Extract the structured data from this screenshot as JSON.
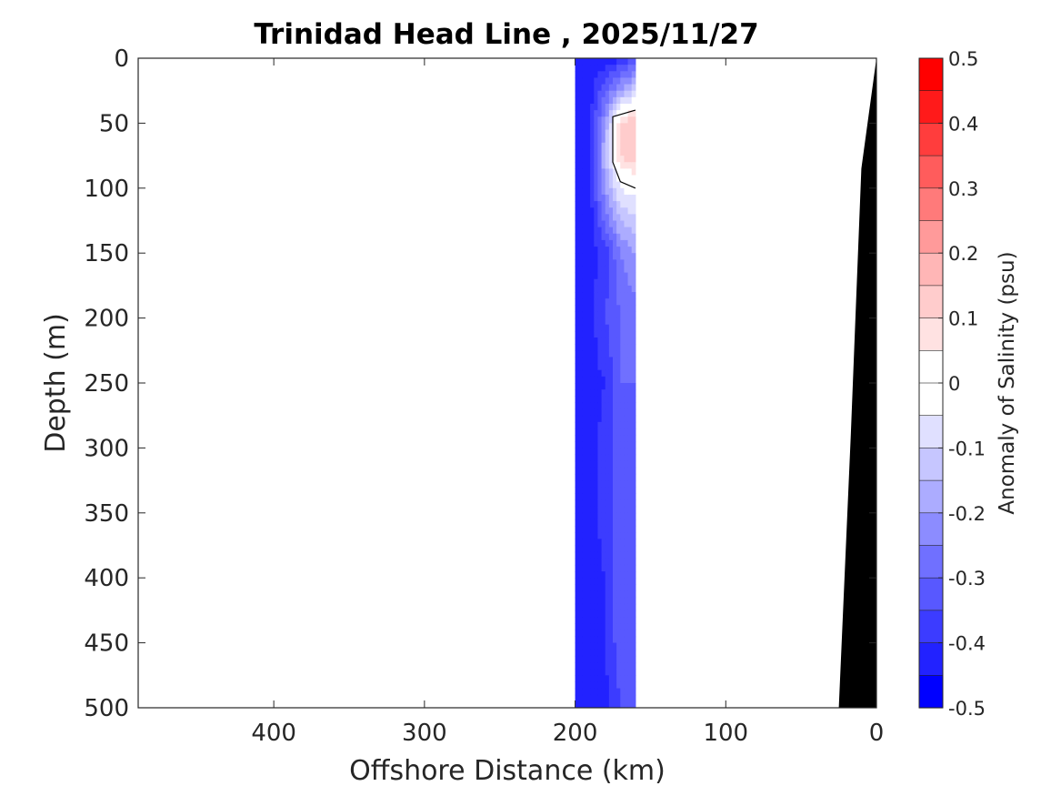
{
  "chart_data": {
    "type": "heatmap",
    "title": "Trinidad Head Line , 2025/11/27",
    "xlabel": "Offshore Distance (km)",
    "ylabel": "Depth (m)",
    "colorbar_label": "Anomaly of Salinity (psu)",
    "xlim": [
      490,
      0
    ],
    "ylim": [
      0,
      500
    ],
    "x_reversed": true,
    "y_reversed": true,
    "x_ticks": [
      400,
      300,
      200,
      100,
      0
    ],
    "y_ticks": [
      0,
      50,
      100,
      150,
      200,
      250,
      300,
      350,
      400,
      450,
      500
    ],
    "colorbar_range": [
      -0.5,
      0.5
    ],
    "colorbar_ticks": [
      0.5,
      0.4,
      0.3,
      0.2,
      0.1,
      0,
      -0.1,
      -0.2,
      -0.3,
      -0.4,
      -0.5
    ],
    "colorbar_tick_labels": [
      "0.5",
      "0.4",
      "0.3",
      "0.2",
      "0.1",
      "0",
      "-0.1",
      "-0.2",
      "-0.3",
      "-0.4",
      "-0.5"
    ],
    "colorbar_colors": [
      "#ff0000",
      "#ff1a1a",
      "#ff3d3d",
      "#ff5c5c",
      "#ff7a7a",
      "#ff9a9a",
      "#ffb6b6",
      "#ffcccc",
      "#ffe2e2",
      "#ffffff",
      "#ffffff",
      "#e0e0ff",
      "#c6c6ff",
      "#acacff",
      "#8c8cff",
      "#7070ff",
      "#5858ff",
      "#3c3cff",
      "#2222ff",
      "#0000ff"
    ],
    "data_band_x": [
      200,
      160
    ],
    "profiles": {
      "x": [
        200,
        190,
        180,
        170,
        160
      ],
      "depth": [
        0,
        25,
        50,
        75,
        100,
        150,
        200,
        250,
        300,
        350,
        400,
        450,
        500
      ],
      "salinity_anomaly": [
        [
          -0.45,
          -0.45,
          -0.45,
          -0.45,
          -0.45,
          -0.45,
          -0.45,
          -0.45,
          -0.45,
          -0.45,
          -0.45,
          -0.45,
          -0.45
        ],
        [
          -0.45,
          -0.42,
          -0.42,
          -0.42,
          -0.42,
          -0.42,
          -0.42,
          -0.42,
          -0.42,
          -0.42,
          -0.42,
          -0.42,
          -0.42
        ],
        [
          -0.45,
          -0.3,
          -0.2,
          -0.15,
          -0.2,
          -0.38,
          -0.35,
          -0.4,
          -0.38,
          -0.38,
          -0.4,
          -0.4,
          -0.42
        ],
        [
          -0.4,
          -0.2,
          0.1,
          0.1,
          -0.05,
          -0.25,
          -0.3,
          -0.3,
          -0.3,
          -0.3,
          -0.3,
          -0.32,
          -0.35
        ],
        [
          -0.35,
          -0.1,
          0.15,
          0.15,
          -0.02,
          -0.2,
          -0.28,
          -0.3,
          -0.3,
          -0.3,
          -0.3,
          -0.32,
          -0.35
        ]
      ]
    },
    "zero_contour": [
      [
        160,
        40
      ],
      [
        175,
        45
      ],
      [
        175,
        80
      ],
      [
        170,
        95
      ],
      [
        160,
        100
      ]
    ],
    "bathymetry": [
      [
        0,
        0
      ],
      [
        10,
        85
      ],
      [
        17,
        290
      ],
      [
        25,
        500
      ]
    ],
    "bathymetry_color": "#000000"
  }
}
